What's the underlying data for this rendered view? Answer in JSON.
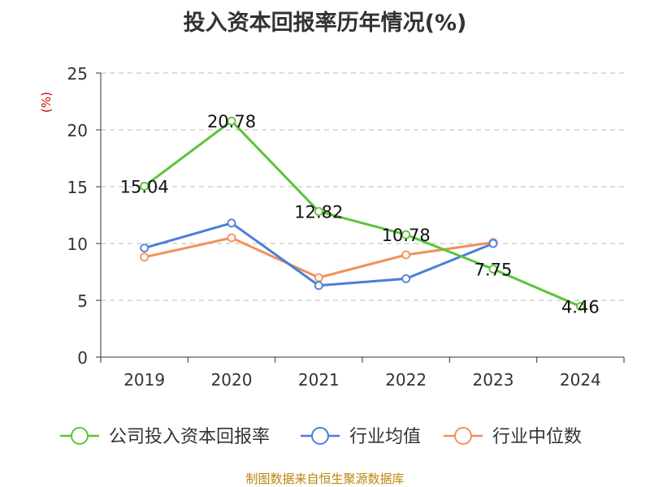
{
  "chart_data": {
    "type": "line",
    "title": "投入资本回报率历年情况(%)",
    "ylabel": "(%)",
    "categories": [
      "2019",
      "2020",
      "2021",
      "2022",
      "2023",
      "2024"
    ],
    "ylim": [
      0,
      25
    ],
    "yticks": [
      0,
      5,
      10,
      15,
      20,
      25
    ],
    "grid": true,
    "legend_position": "bottom",
    "series": [
      {
        "name": "公司投入资本回报率",
        "color": "#5cc43a",
        "values": [
          15.04,
          20.78,
          12.82,
          10.78,
          7.75,
          4.46
        ],
        "labels": [
          "15.04",
          "20.78",
          "12.82",
          "10.78",
          "7.75",
          "4.46"
        ]
      },
      {
        "name": "行业均值",
        "color": "#4a7fd9",
        "values": [
          9.6,
          11.8,
          6.3,
          6.9,
          10.0,
          null
        ]
      },
      {
        "name": "行业中位数",
        "color": "#f0915a",
        "values": [
          8.8,
          10.5,
          7.0,
          9.0,
          10.1,
          null
        ]
      }
    ]
  },
  "source": "制图数据来自恒生聚源数据库"
}
